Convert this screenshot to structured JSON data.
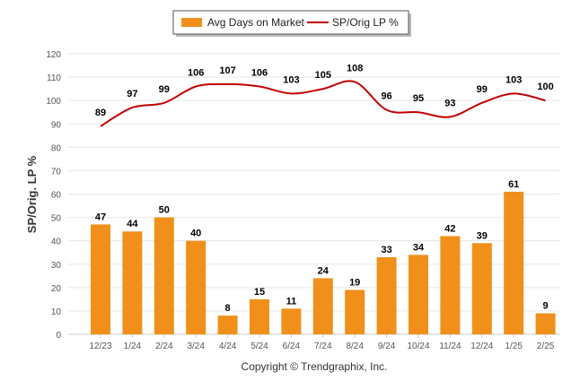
{
  "chart_data": {
    "type": "bar",
    "categories": [
      "12/23",
      "1/24",
      "2/24",
      "3/24",
      "4/24",
      "5/24",
      "6/24",
      "7/24",
      "8/24",
      "9/24",
      "10/24",
      "11/24",
      "12/24",
      "1/25",
      "2/25"
    ],
    "series": [
      {
        "name": "Avg Days on Market",
        "kind": "bar",
        "color": "#F0901B",
        "values": [
          47,
          44,
          50,
          40,
          8,
          15,
          11,
          24,
          19,
          33,
          34,
          42,
          39,
          61,
          9
        ]
      },
      {
        "name": "SP/Orig LP %",
        "kind": "line",
        "color": "#C00000",
        "values": [
          89,
          97,
          99,
          106,
          107,
          106,
          103,
          105,
          108,
          96,
          95,
          93,
          99,
          103,
          100
        ]
      }
    ],
    "ylabel": "SP/Orig. LP %",
    "ylim": [
      0,
      120
    ],
    "yticks": [
      0,
      10,
      20,
      30,
      40,
      50,
      60,
      70,
      80,
      90,
      100,
      110,
      120
    ],
    "grid": true,
    "legend": "top-center",
    "credit": "Copyright © Trendgraphix, Inc."
  }
}
